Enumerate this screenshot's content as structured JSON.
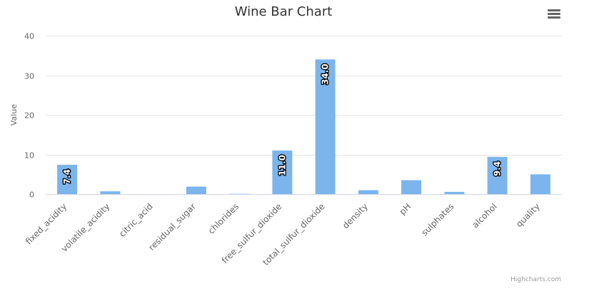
{
  "chart_data": {
    "type": "bar",
    "title": "Wine Bar Chart",
    "ylabel": "Value",
    "xlabel": "",
    "ylim": [
      0,
      40
    ],
    "yticks": [
      0,
      10,
      20,
      30,
      40
    ],
    "grid": true,
    "categories": [
      "fixed_acidity",
      "volatile_acidity",
      "citric_acid",
      "residual_sugar",
      "chlorides",
      "free_sulfur_dioxide",
      "total_sulfur_dioxide",
      "density",
      "pH",
      "sulphates",
      "alcohol",
      "quality"
    ],
    "values": [
      7.4,
      0.7,
      0.0,
      1.9,
      0.076,
      11.0,
      34.0,
      0.9978,
      3.51,
      0.56,
      9.4,
      5
    ],
    "data_labels": [
      "7.4",
      "",
      "",
      "",
      "",
      "11.0",
      "34.0",
      "",
      "",
      "",
      "9.4",
      ""
    ],
    "bar_color": "#7cb5ec",
    "credits": "Highcharts.com"
  },
  "menu": {
    "icon": "hamburger-menu-icon"
  }
}
